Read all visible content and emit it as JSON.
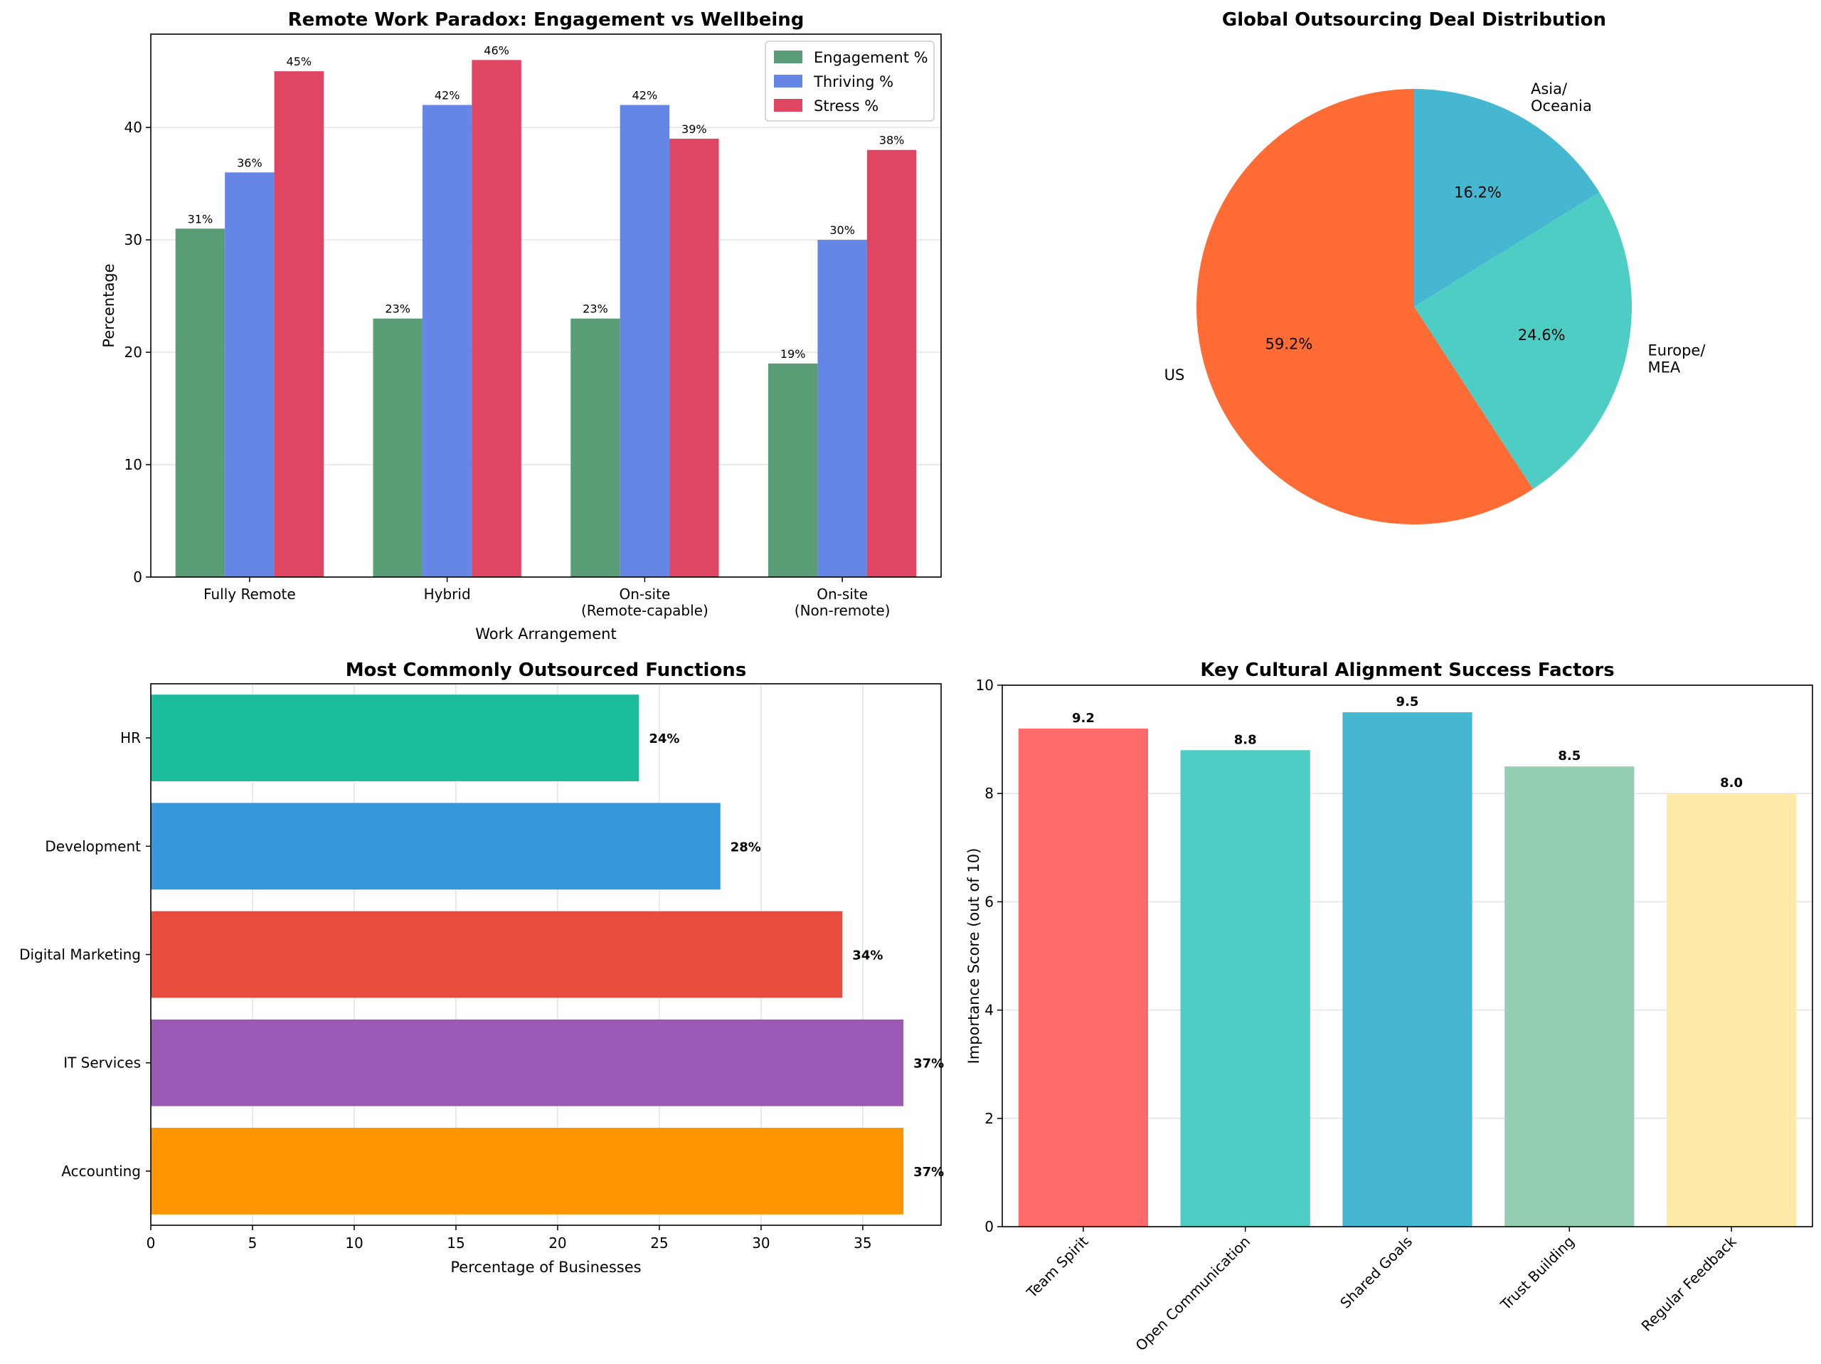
{
  "chart_data": [
    {
      "type": "bar",
      "title": "Remote Work Paradox: Engagement vs Wellbeing",
      "xlabel": "Work Arrangement",
      "ylabel": "Percentage",
      "categories": [
        [
          "Fully Remote"
        ],
        [
          "Hybrid"
        ],
        [
          "On-site",
          "(Remote-capable)"
        ],
        [
          "On-site",
          "(Non-remote)"
        ]
      ],
      "series": [
        {
          "name": "Engagement %",
          "color": "#5a9e77",
          "values": [
            31,
            23,
            23,
            19
          ],
          "labels": [
            "31%",
            "23%",
            "23%",
            "19%"
          ]
        },
        {
          "name": "Thriving %",
          "color": "#6686e5",
          "values": [
            36,
            42,
            42,
            30
          ],
          "labels": [
            "36%",
            "42%",
            "42%",
            "30%"
          ]
        },
        {
          "name": "Stress %",
          "color": "#e04562",
          "values": [
            45,
            46,
            39,
            38
          ],
          "labels": [
            "45%",
            "46%",
            "39%",
            "38%"
          ]
        }
      ],
      "ylim": [
        0,
        48.3
      ],
      "yticks": [
        0,
        10,
        20,
        30,
        40
      ],
      "grid": true,
      "legend": "top-right"
    },
    {
      "type": "pie",
      "title": "Global Outsourcing Deal Distribution",
      "slices": [
        {
          "label": [
            "US"
          ],
          "value": 59.2,
          "pct": "59.2%",
          "color": "#ff6b35"
        },
        {
          "label": [
            "Europe/",
            "MEA"
          ],
          "value": 24.6,
          "pct": "24.6%",
          "color": "#4ecdc4"
        },
        {
          "label": [
            "Asia/",
            "Oceania"
          ],
          "value": 16.2,
          "pct": "16.2%",
          "color": "#45b7d1"
        }
      ],
      "start_angle": 90,
      "direction": "counterclockwise"
    },
    {
      "type": "barh",
      "title": "Most Commonly Outsourced Functions",
      "xlabel": "Percentage of Businesses",
      "categories": [
        "Accounting",
        "IT Services",
        "Digital Marketing",
        "Development",
        "HR"
      ],
      "values": [
        37,
        37,
        34,
        28,
        24
      ],
      "labels": [
        "37%",
        "37%",
        "34%",
        "28%",
        "24%"
      ],
      "colors": [
        "#ff9500",
        "#9b59b6",
        "#e74c3c",
        "#3498db",
        "#1abc9c"
      ],
      "xlim": [
        0,
        38.85
      ],
      "xticks": [
        0,
        5,
        10,
        15,
        20,
        25,
        30,
        35
      ],
      "grid": true
    },
    {
      "type": "bar",
      "title": "Key Cultural Alignment Success Factors",
      "ylabel": "Importance Score (out of 10)",
      "categories": [
        "Team Spirit",
        "Open Communication",
        "Shared Goals",
        "Trust Building",
        "Regular Feedback"
      ],
      "values": [
        9.2,
        8.8,
        9.5,
        8.5,
        8.0
      ],
      "labels": [
        "9.2",
        "8.8",
        "9.5",
        "8.5",
        "8.0"
      ],
      "colors": [
        "#ff6b6b",
        "#4ecdc4",
        "#45b7d1",
        "#96ceb4",
        "#ffeaa7"
      ],
      "ylim": [
        0,
        10
      ],
      "yticks": [
        0,
        2,
        4,
        6,
        8,
        10
      ],
      "grid": true
    }
  ]
}
